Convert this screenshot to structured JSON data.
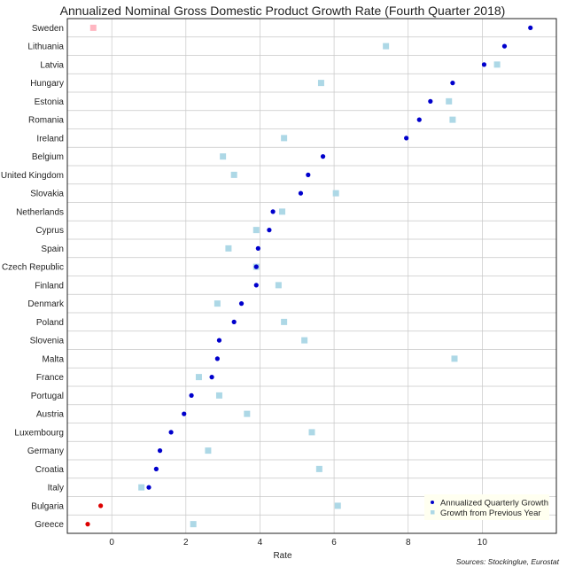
{
  "chart_data": {
    "type": "scatter",
    "title": "Annualized Nominal Gross Domestic Product Growth Rate (Fourth Quarter 2018)",
    "xlabel": "Rate",
    "ylabel": "",
    "xlim": [
      -1.2,
      12.0
    ],
    "xticks": [
      0,
      2,
      4,
      6,
      8,
      10
    ],
    "grid": true,
    "legend_position": "bottom-right",
    "source": "Sources: Stockinglue, Eurostat",
    "colors": {
      "quarterly_positive": "#0000cc",
      "quarterly_negative": "#dd0000",
      "yearly_positive": "#add8e6",
      "yearly_negative": "#ffb6c1",
      "grid": "#c8c8c8",
      "frame": "#222222",
      "legend_bg": "#fffff0"
    },
    "categories": [
      "Sweden",
      "Lithuania",
      "Latvia",
      "Hungary",
      "Estonia",
      "Romania",
      "Ireland",
      "Belgium",
      "United Kingdom",
      "Slovakia",
      "Netherlands",
      "Cyprus",
      "Spain",
      "Czech Republic",
      "Finland",
      "Denmark",
      "Poland",
      "Slovenia",
      "Malta",
      "France",
      "Portugal",
      "Austria",
      "Luxembourg",
      "Germany",
      "Croatia",
      "Italy",
      "Bulgaria",
      "Greece"
    ],
    "series": [
      {
        "name": "Annualized Quarterly Growth",
        "marker": "circle",
        "values": [
          11.3,
          10.6,
          10.05,
          9.2,
          8.6,
          8.3,
          7.95,
          5.7,
          5.3,
          5.1,
          4.35,
          4.25,
          3.95,
          3.9,
          3.9,
          3.5,
          3.3,
          2.9,
          2.85,
          2.7,
          2.15,
          1.95,
          1.6,
          1.3,
          1.2,
          1.0,
          -0.3,
          -0.65
        ]
      },
      {
        "name": "Growth from Previous Year",
        "marker": "square",
        "values": [
          -0.5,
          7.4,
          10.4,
          5.65,
          9.1,
          9.2,
          4.65,
          3.0,
          3.3,
          6.05,
          4.6,
          3.9,
          3.15,
          3.9,
          4.5,
          2.85,
          4.65,
          5.2,
          9.25,
          2.35,
          2.9,
          3.65,
          5.4,
          2.6,
          5.6,
          0.8,
          6.1,
          2.2
        ]
      }
    ]
  }
}
